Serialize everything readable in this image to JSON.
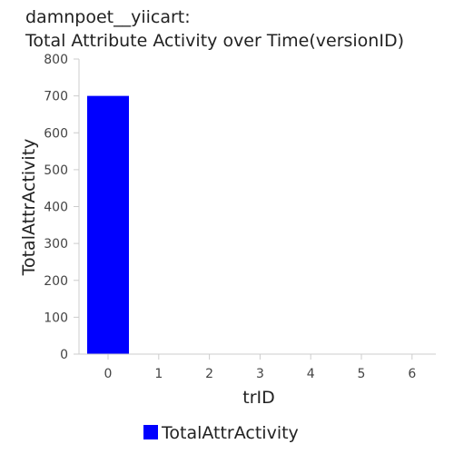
{
  "chart_data": {
    "type": "bar",
    "title_line1": "damnpoet__yiicart:",
    "title_line2": "Total Attribute Activity over Time(versionID)",
    "xlabel": "trID",
    "ylabel": "TotalAttrActivity",
    "categories": [
      "0",
      "1",
      "2",
      "3",
      "4",
      "5",
      "6"
    ],
    "series": [
      {
        "name": "TotalAttrActivity",
        "values": [
          700,
          0,
          0,
          0,
          0,
          0,
          0
        ],
        "color": "#0000ff"
      }
    ],
    "ylim": [
      0,
      800
    ],
    "yticks": [
      "0",
      "100",
      "200",
      "300",
      "400",
      "500",
      "600",
      "700",
      "800"
    ],
    "grid": false,
    "legend_position": "bottom"
  }
}
